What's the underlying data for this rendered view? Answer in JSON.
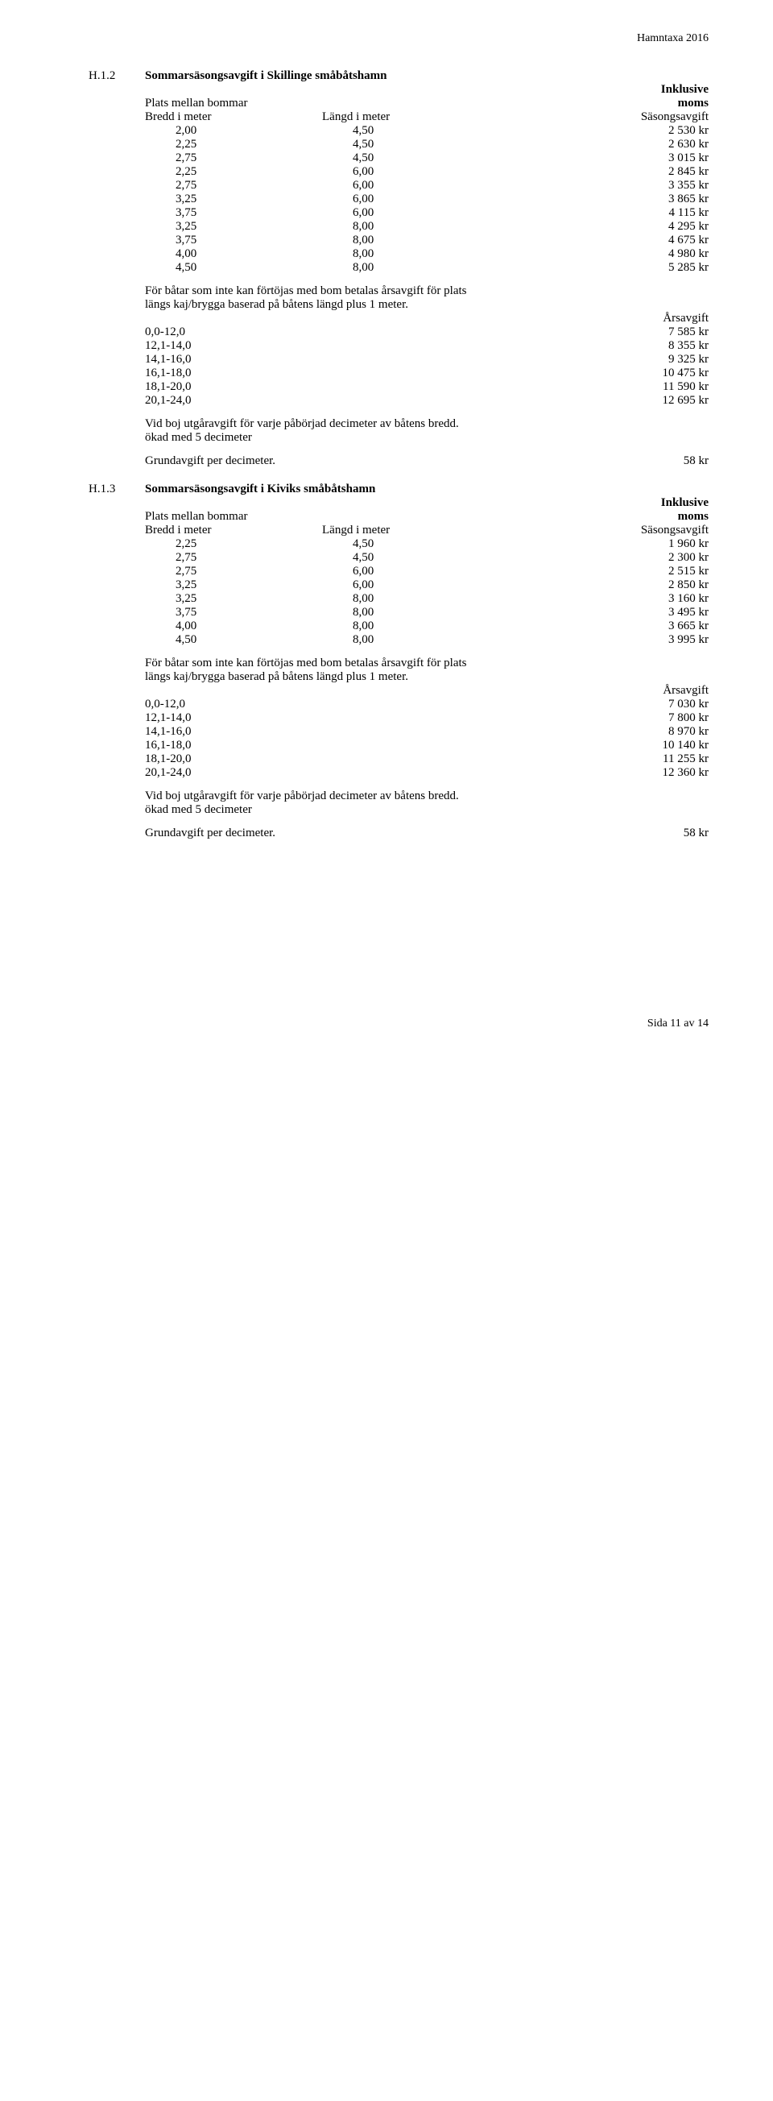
{
  "header": "Hamntaxa 2016",
  "footer": "Sida 11 av 14",
  "sections": [
    {
      "num": "H.1.2",
      "title": "Sommarsäsongsavgift i Skillinge småbåtshamn",
      "platsLabel": "Plats mellan bommar",
      "inklLine1": "Inklusive",
      "inklLine2": "moms",
      "colHeaders": {
        "bredd": "Bredd i meter",
        "langd": "Längd i meter",
        "avgift": "Säsongsavgift"
      },
      "table1": [
        {
          "a": "2,00",
          "b": "4,50",
          "c": "2 530 kr"
        },
        {
          "a": "2,25",
          "b": "4,50",
          "c": "2 630 kr"
        },
        {
          "a": "2,75",
          "b": "4,50",
          "c": "3 015 kr"
        },
        {
          "a": "2,25",
          "b": "6,00",
          "c": "2 845 kr"
        },
        {
          "a": "2,75",
          "b": "6,00",
          "c": "3 355 kr"
        },
        {
          "a": "3,25",
          "b": "6,00",
          "c": "3 865 kr"
        },
        {
          "a": "3,75",
          "b": "6,00",
          "c": "4 115 kr"
        },
        {
          "a": "3,25",
          "b": "8,00",
          "c": "4 295 kr"
        },
        {
          "a": "3,75",
          "b": "8,00",
          "c": "4 675 kr"
        },
        {
          "a": "4,00",
          "b": "8,00",
          "c": "4 980 kr"
        },
        {
          "a": "4,50",
          "b": "8,00",
          "c": "5 285 kr"
        }
      ],
      "note1a": "För båtar som inte kan förtöjas med bom betalas årsavgift för plats",
      "note1b": "längs kaj/brygga baserad på båtens längd plus 1 meter.",
      "arsLabel": "Årsavgift",
      "table2": [
        {
          "a": "0,0-12,0",
          "c": "7 585 kr"
        },
        {
          "a": "12,1-14,0",
          "c": "8 355 kr"
        },
        {
          "a": "14,1-16,0",
          "c": "9 325 kr"
        },
        {
          "a": "16,1-18,0",
          "c": "10 475 kr"
        },
        {
          "a": "18,1-20,0",
          "c": "11 590 kr"
        },
        {
          "a": "20,1-24,0",
          "c": "12 695 kr"
        }
      ],
      "note2a": "Vid boj utgåravgift för varje påbörjad decimeter av båtens bredd.",
      "note2b": "ökad med 5 decimeter",
      "grund": "Grundavgift per decimeter.",
      "grundVal": "58 kr"
    },
    {
      "num": "H.1.3",
      "title": "Sommarsäsongsavgift i Kiviks småbåtshamn",
      "platsLabel": "Plats mellan bommar",
      "inklLine1": "Inklusive",
      "inklLine2": "moms",
      "colHeaders": {
        "bredd": "Bredd i meter",
        "langd": "Längd i meter",
        "avgift": "Säsongsavgift"
      },
      "table1": [
        {
          "a": "2,25",
          "b": "4,50",
          "c": "1 960 kr"
        },
        {
          "a": "2,75",
          "b": "4,50",
          "c": "2 300 kr"
        },
        {
          "a": "2,75",
          "b": "6,00",
          "c": "2 515 kr"
        },
        {
          "a": "3,25",
          "b": "6,00",
          "c": "2 850 kr"
        },
        {
          "a": "3,25",
          "b": "8,00",
          "c": "3 160 kr"
        },
        {
          "a": "3,75",
          "b": "8,00",
          "c": "3 495 kr"
        },
        {
          "a": "4,00",
          "b": "8,00",
          "c": "3 665 kr"
        },
        {
          "a": "4,50",
          "b": "8,00",
          "c": "3 995 kr"
        }
      ],
      "note1a": "För båtar som inte kan förtöjas med bom betalas årsavgift för plats",
      "note1b": "längs kaj/brygga baserad på båtens längd plus 1 meter.",
      "arsLabel": "Årsavgift",
      "table2": [
        {
          "a": "0,0-12,0",
          "c": "7 030 kr"
        },
        {
          "a": "12,1-14,0",
          "c": "7 800 kr"
        },
        {
          "a": "14,1-16,0",
          "c": "8 970 kr"
        },
        {
          "a": "16,1-18,0",
          "c": "10 140 kr"
        },
        {
          "a": "18,1-20,0",
          "c": "11 255 kr"
        },
        {
          "a": "20,1-24,0",
          "c": "12 360 kr"
        }
      ],
      "note2a": "Vid boj utgåravgift för varje påbörjad decimeter av båtens bredd.",
      "note2b": "ökad med 5 decimeter",
      "grund": "Grundavgift per decimeter.",
      "grundVal": "58 kr"
    }
  ]
}
